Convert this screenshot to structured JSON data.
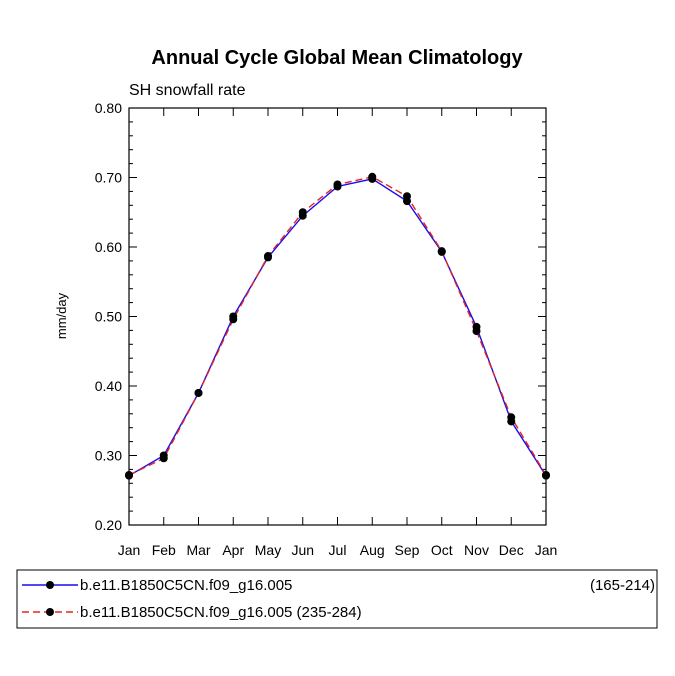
{
  "chart_data": {
    "type": "line",
    "title": "Annual Cycle Global Mean Climatology",
    "subtitle": "SH snowfall rate",
    "ylabel": "mm/day",
    "xlabel": "",
    "categories": [
      "Jan",
      "Feb",
      "Mar",
      "Apr",
      "May",
      "Jun",
      "Jul",
      "Aug",
      "Sep",
      "Oct",
      "Nov",
      "Dec",
      "Jan"
    ],
    "ylim": [
      0.2,
      0.8
    ],
    "yticks": [
      "0.20",
      "0.30",
      "0.40",
      "0.50",
      "0.60",
      "0.70",
      "0.80"
    ],
    "grid": false,
    "series": [
      {
        "name": "b.e11.B1850C5CN.f09_g16.005",
        "range": "(165-214)",
        "color": "#1a0cf0",
        "dash": "solid",
        "values": [
          0.271,
          0.3,
          0.39,
          0.5,
          0.585,
          0.645,
          0.687,
          0.698,
          0.666,
          0.593,
          0.485,
          0.349,
          0.271
        ]
      },
      {
        "name": "b.e11.B1850C5CN.f09_g16.005 (235-284)",
        "range": "",
        "color": "#e8231e",
        "dash": "dashed",
        "values": [
          0.272,
          0.296,
          0.39,
          0.496,
          0.587,
          0.65,
          0.69,
          0.701,
          0.673,
          0.594,
          0.479,
          0.355,
          0.272
        ]
      }
    ],
    "marker_color": "#000000"
  }
}
